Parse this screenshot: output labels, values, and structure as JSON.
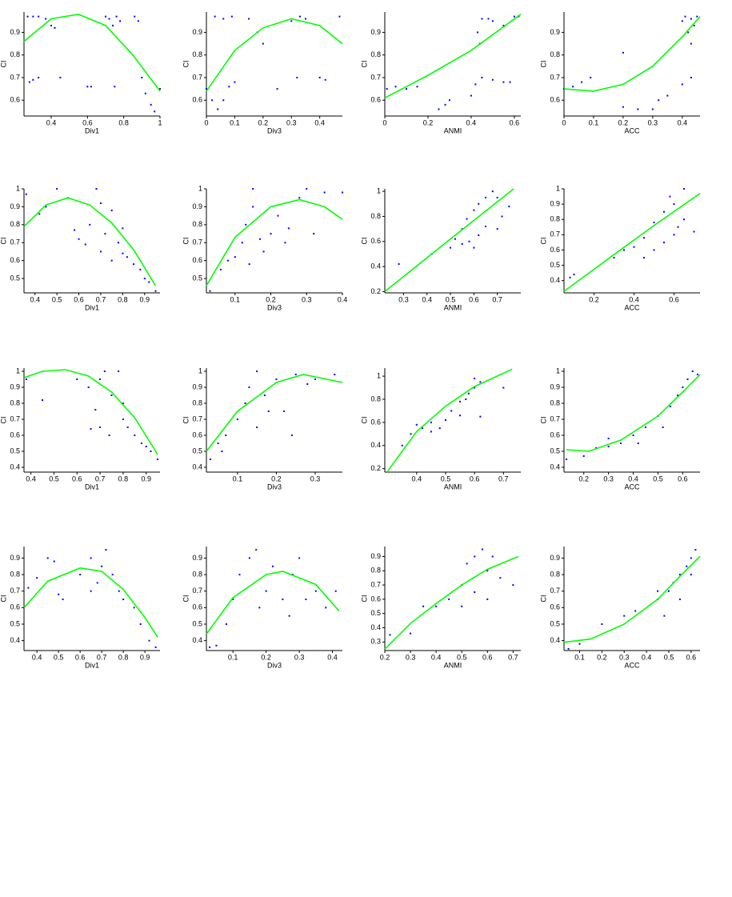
{
  "chart_data": [
    {
      "type": "scatter",
      "xlabel": "Div1",
      "ylabel": "CI",
      "xlim": [
        0.25,
        1.0
      ],
      "ylim": [
        0.53,
        0.99
      ],
      "xticks": [
        0.4,
        0.6,
        0.8,
        1
      ],
      "yticks": [
        0.6,
        0.7,
        0.8,
        0.9
      ],
      "color": "#0000ff",
      "fit_color": "#00ff00",
      "x": [
        0.27,
        0.3,
        0.33,
        0.37,
        0.4,
        0.42,
        0.28,
        0.3,
        0.33,
        0.45,
        0.6,
        0.62,
        0.7,
        0.72,
        0.74,
        0.78,
        0.86,
        0.88,
        0.9,
        0.92,
        0.95,
        0.97,
        1.0,
        0.75,
        0.76
      ],
      "y": [
        0.97,
        0.97,
        0.97,
        0.96,
        0.93,
        0.92,
        0.68,
        0.69,
        0.7,
        0.7,
        0.66,
        0.66,
        0.97,
        0.96,
        0.93,
        0.95,
        0.97,
        0.95,
        0.7,
        0.63,
        0.58,
        0.55,
        0.65,
        0.66,
        0.97
      ],
      "fit_x": [
        0.25,
        0.4,
        0.55,
        0.7,
        0.85,
        1.0
      ],
      "fit_y": [
        0.86,
        0.96,
        0.98,
        0.93,
        0.8,
        0.64
      ]
    },
    {
      "type": "scatter",
      "xlabel": "Div3",
      "ylabel": "CI",
      "xlim": [
        0,
        0.48
      ],
      "ylim": [
        0.53,
        0.99
      ],
      "xticks": [
        0,
        0.1,
        0.2,
        0.3,
        0.4
      ],
      "yticks": [
        0.6,
        0.7,
        0.8,
        0.9
      ],
      "color": "#0000ff",
      "fit_color": "#00ff00",
      "x": [
        0.0,
        0.02,
        0.04,
        0.06,
        0.08,
        0.1,
        0.03,
        0.06,
        0.09,
        0.15,
        0.18,
        0.2,
        0.25,
        0.3,
        0.33,
        0.35,
        0.4,
        0.42,
        0.47,
        0.32
      ],
      "y": [
        0.65,
        0.6,
        0.56,
        0.6,
        0.66,
        0.68,
        0.97,
        0.96,
        0.97,
        0.96,
        0.9,
        0.85,
        0.65,
        0.95,
        0.97,
        0.96,
        0.7,
        0.69,
        0.97,
        0.7
      ],
      "fit_x": [
        0,
        0.1,
        0.2,
        0.3,
        0.4,
        0.48
      ],
      "fit_y": [
        0.64,
        0.82,
        0.92,
        0.96,
        0.93,
        0.85
      ]
    },
    {
      "type": "scatter",
      "xlabel": "ANMI",
      "ylabel": "CI",
      "xlim": [
        0,
        0.63
      ],
      "ylim": [
        0.53,
        0.99
      ],
      "xticks": [
        0,
        0.2,
        0.4,
        0.6
      ],
      "yticks": [
        0.6,
        0.7,
        0.8,
        0.9
      ],
      "color": "#0000ff",
      "fit_color": "#00ff00",
      "x": [
        0.01,
        0.05,
        0.1,
        0.15,
        0.25,
        0.28,
        0.3,
        0.4,
        0.42,
        0.45,
        0.5,
        0.55,
        0.58,
        0.43,
        0.45,
        0.48,
        0.5,
        0.55,
        0.6,
        0.44,
        0.62
      ],
      "y": [
        0.65,
        0.66,
        0.65,
        0.66,
        0.56,
        0.58,
        0.6,
        0.62,
        0.67,
        0.7,
        0.69,
        0.68,
        0.68,
        0.9,
        0.96,
        0.96,
        0.95,
        0.93,
        0.97,
        0.85,
        0.97
      ],
      "fit_x": [
        0,
        0.2,
        0.4,
        0.63
      ],
      "fit_y": [
        0.61,
        0.71,
        0.82,
        0.98
      ]
    },
    {
      "type": "scatter",
      "xlabel": "ACC",
      "ylabel": "CI",
      "xlim": [
        0,
        0.46
      ],
      "ylim": [
        0.53,
        0.99
      ],
      "xticks": [
        0,
        0.1,
        0.2,
        0.3,
        0.4
      ],
      "yticks": [
        0.6,
        0.7,
        0.8,
        0.9
      ],
      "color": "#0000ff",
      "fit_color": "#00ff00",
      "x": [
        0,
        0.03,
        0.06,
        0.09,
        0.2,
        0.2,
        0.25,
        0.3,
        0.32,
        0.35,
        0.4,
        0.43,
        0.4,
        0.41,
        0.43,
        0.45,
        0.42,
        0.43,
        0.44
      ],
      "y": [
        0.65,
        0.66,
        0.68,
        0.7,
        0.81,
        0.57,
        0.56,
        0.56,
        0.6,
        0.62,
        0.67,
        0.7,
        0.95,
        0.97,
        0.96,
        0.97,
        0.9,
        0.85,
        0.93
      ],
      "fit_x": [
        0,
        0.1,
        0.2,
        0.3,
        0.4,
        0.46
      ],
      "fit_y": [
        0.65,
        0.64,
        0.67,
        0.75,
        0.88,
        0.97
      ]
    },
    {
      "type": "scatter",
      "xlabel": "Div1",
      "ylabel": "CI",
      "xlim": [
        0.35,
        0.97
      ],
      "ylim": [
        0.42,
        1.0
      ],
      "xticks": [
        0.4,
        0.5,
        0.6,
        0.7,
        0.8,
        0.9
      ],
      "yticks": [
        0.5,
        0.6,
        0.7,
        0.8,
        0.9,
        1
      ],
      "color": "#0000ff",
      "fit_color": "#00ff00",
      "x": [
        0.36,
        0.42,
        0.45,
        0.5,
        0.55,
        0.58,
        0.6,
        0.65,
        0.68,
        0.7,
        0.72,
        0.75,
        0.78,
        0.8,
        0.82,
        0.85,
        0.88,
        0.9,
        0.92,
        0.95,
        0.7,
        0.75,
        0.8,
        0.63
      ],
      "y": [
        0.97,
        0.86,
        0.9,
        1.0,
        0.95,
        0.77,
        0.72,
        0.8,
        1.0,
        0.92,
        0.75,
        0.88,
        0.7,
        0.64,
        0.62,
        0.58,
        0.55,
        0.5,
        0.48,
        0.43,
        0.65,
        0.6,
        0.78,
        0.69
      ],
      "fit_x": [
        0.35,
        0.45,
        0.55,
        0.65,
        0.75,
        0.85,
        0.95
      ],
      "fit_y": [
        0.79,
        0.91,
        0.95,
        0.91,
        0.81,
        0.66,
        0.46
      ]
    },
    {
      "type": "scatter",
      "xlabel": "Div3",
      "ylabel": "CI",
      "xlim": [
        0.02,
        0.4
      ],
      "ylim": [
        0.42,
        1.0
      ],
      "xticks": [
        0.1,
        0.2,
        0.3,
        0.4
      ],
      "yticks": [
        0.5,
        0.6,
        0.7,
        0.8,
        0.9,
        1
      ],
      "color": "#0000ff",
      "fit_color": "#00ff00",
      "x": [
        0.03,
        0.06,
        0.08,
        0.1,
        0.12,
        0.13,
        0.15,
        0.15,
        0.18,
        0.2,
        0.22,
        0.25,
        0.28,
        0.3,
        0.32,
        0.35,
        0.4,
        0.14,
        0.17,
        0.24
      ],
      "y": [
        0.43,
        0.55,
        0.6,
        0.62,
        0.7,
        0.8,
        0.9,
        1.0,
        0.65,
        0.75,
        0.85,
        0.78,
        0.95,
        1.0,
        0.75,
        0.98,
        0.98,
        0.58,
        0.72,
        0.7
      ],
      "fit_x": [
        0.02,
        0.1,
        0.2,
        0.28,
        0.35,
        0.4
      ],
      "fit_y": [
        0.46,
        0.73,
        0.9,
        0.94,
        0.9,
        0.83
      ]
    },
    {
      "type": "scatter",
      "xlabel": "ANMI",
      "ylabel": "CI",
      "xlim": [
        0.22,
        0.8
      ],
      "ylim": [
        0.19,
        1.02
      ],
      "xticks": [
        0.3,
        0.4,
        0.5,
        0.6,
        0.7
      ],
      "yticks": [
        0.2,
        0.4,
        0.6,
        0.8,
        1
      ],
      "color": "#0000ff",
      "fit_color": "#00ff00",
      "x": [
        0.28,
        0.42,
        0.5,
        0.52,
        0.55,
        0.57,
        0.6,
        0.62,
        0.65,
        0.68,
        0.62,
        0.65,
        0.7,
        0.72,
        0.58,
        0.6,
        0.55,
        0.7,
        0.75
      ],
      "y": [
        0.42,
        0.5,
        0.55,
        0.62,
        0.7,
        0.78,
        0.85,
        0.9,
        0.95,
        1.0,
        0.65,
        0.72,
        0.7,
        0.8,
        0.6,
        0.55,
        0.58,
        0.95,
        0.88
      ],
      "fit_x": [
        0.22,
        0.5,
        0.77
      ],
      "fit_y": [
        0.2,
        0.62,
        1.02
      ]
    },
    {
      "type": "scatter",
      "xlabel": "ACC",
      "ylabel": "CI",
      "xlim": [
        0.05,
        0.73
      ],
      "ylim": [
        0.32,
        1.0
      ],
      "xticks": [
        0.2,
        0.4,
        0.6
      ],
      "yticks": [
        0.4,
        0.5,
        0.6,
        0.7,
        0.8,
        0.9,
        1
      ],
      "color": "#0000ff",
      "fit_color": "#00ff00",
      "x": [
        0.08,
        0.1,
        0.3,
        0.35,
        0.4,
        0.45,
        0.5,
        0.55,
        0.6,
        0.65,
        0.5,
        0.55,
        0.6,
        0.62,
        0.7,
        0.45,
        0.58,
        0.65
      ],
      "y": [
        0.42,
        0.44,
        0.55,
        0.6,
        0.62,
        0.68,
        0.78,
        0.85,
        0.9,
        1.0,
        0.6,
        0.65,
        0.7,
        0.75,
        0.72,
        0.55,
        0.95,
        0.8
      ],
      "fit_x": [
        0.05,
        0.3,
        0.5,
        0.73
      ],
      "fit_y": [
        0.33,
        0.57,
        0.76,
        0.97
      ]
    },
    {
      "type": "scatter",
      "xlabel": "Div1",
      "ylabel": "CI",
      "xlim": [
        0.37,
        0.96
      ],
      "ylim": [
        0.37,
        1.02
      ],
      "xticks": [
        0.4,
        0.5,
        0.6,
        0.7,
        0.8,
        0.9
      ],
      "yticks": [
        0.4,
        0.5,
        0.6,
        0.7,
        0.8,
        0.9,
        1
      ],
      "color": "#0000ff",
      "fit_color": "#00ff00",
      "x": [
        0.38,
        0.45,
        0.6,
        0.65,
        0.7,
        0.72,
        0.68,
        0.7,
        0.75,
        0.78,
        0.8,
        0.82,
        0.85,
        0.88,
        0.9,
        0.92,
        0.95,
        0.74,
        0.8,
        0.66
      ],
      "y": [
        0.95,
        0.82,
        0.95,
        0.9,
        0.95,
        1.0,
        0.76,
        0.65,
        0.85,
        1.0,
        0.8,
        0.65,
        0.6,
        0.55,
        0.53,
        0.5,
        0.45,
        0.6,
        0.7,
        0.64
      ],
      "fit_x": [
        0.37,
        0.45,
        0.55,
        0.65,
        0.75,
        0.85,
        0.95
      ],
      "fit_y": [
        0.96,
        1.0,
        1.01,
        0.97,
        0.87,
        0.71,
        0.48
      ]
    },
    {
      "type": "scatter",
      "xlabel": "Div3",
      "ylabel": "CI",
      "xlim": [
        0.02,
        0.37
      ],
      "ylim": [
        0.37,
        1.02
      ],
      "xticks": [
        0.1,
        0.2,
        0.3
      ],
      "yticks": [
        0.4,
        0.5,
        0.6,
        0.7,
        0.8,
        0.9,
        1
      ],
      "color": "#0000ff",
      "fit_color": "#00ff00",
      "x": [
        0.03,
        0.05,
        0.07,
        0.1,
        0.12,
        0.13,
        0.15,
        0.15,
        0.18,
        0.2,
        0.22,
        0.25,
        0.28,
        0.3,
        0.35,
        0.06,
        0.17,
        0.24
      ],
      "y": [
        0.45,
        0.55,
        0.6,
        0.7,
        0.8,
        0.9,
        1.0,
        0.65,
        0.75,
        0.95,
        0.75,
        0.98,
        0.92,
        0.95,
        0.98,
        0.5,
        0.85,
        0.6
      ],
      "fit_x": [
        0.02,
        0.1,
        0.2,
        0.27,
        0.37
      ],
      "fit_y": [
        0.5,
        0.75,
        0.93,
        0.98,
        0.93
      ]
    },
    {
      "type": "scatter",
      "xlabel": "ANMI",
      "ylabel": "CI",
      "xlim": [
        0.29,
        0.76
      ],
      "ylim": [
        0.17,
        1.07
      ],
      "xticks": [
        0.4,
        0.5,
        0.6,
        0.7
      ],
      "yticks": [
        0.2,
        0.4,
        0.6,
        0.8,
        1
      ],
      "color": "#0000ff",
      "fit_color": "#00ff00",
      "x": [
        0.35,
        0.38,
        0.4,
        0.42,
        0.45,
        0.48,
        0.5,
        0.52,
        0.55,
        0.58,
        0.6,
        0.62,
        0.6,
        0.55,
        0.62,
        0.7,
        0.45,
        0.57
      ],
      "y": [
        0.4,
        0.5,
        0.58,
        0.55,
        0.6,
        0.55,
        0.62,
        0.7,
        0.78,
        0.85,
        0.9,
        0.95,
        0.98,
        0.66,
        0.65,
        0.9,
        0.52,
        0.8
      ],
      "fit_x": [
        0.3,
        0.4,
        0.5,
        0.6,
        0.73
      ],
      "fit_y": [
        0.18,
        0.52,
        0.74,
        0.91,
        1.06
      ]
    },
    {
      "type": "scatter",
      "xlabel": "ACC",
      "ylabel": "CI",
      "xlim": [
        0.12,
        0.67
      ],
      "ylim": [
        0.37,
        1.02
      ],
      "xticks": [
        0.2,
        0.3,
        0.4,
        0.5,
        0.6
      ],
      "yticks": [
        0.4,
        0.5,
        0.6,
        0.7,
        0.8,
        0.9,
        1
      ],
      "color": "#0000ff",
      "fit_color": "#00ff00",
      "x": [
        0.13,
        0.2,
        0.25,
        0.3,
        0.35,
        0.4,
        0.45,
        0.5,
        0.52,
        0.55,
        0.58,
        0.6,
        0.62,
        0.64,
        0.66,
        0.3,
        0.42
      ],
      "y": [
        0.45,
        0.47,
        0.52,
        0.53,
        0.55,
        0.6,
        0.65,
        0.72,
        0.65,
        0.78,
        0.85,
        0.9,
        0.95,
        1.0,
        0.98,
        0.58,
        0.55
      ],
      "fit_x": [
        0.13,
        0.22,
        0.35,
        0.5,
        0.6,
        0.67
      ],
      "fit_y": [
        0.51,
        0.5,
        0.57,
        0.72,
        0.87,
        0.98
      ]
    },
    {
      "type": "scatter",
      "xlabel": "Div1",
      "ylabel": "CI",
      "xlim": [
        0.34,
        0.97
      ],
      "ylim": [
        0.34,
        0.97
      ],
      "xticks": [
        0.4,
        0.5,
        0.6,
        0.7,
        0.8,
        0.9
      ],
      "yticks": [
        0.4,
        0.5,
        0.6,
        0.7,
        0.8,
        0.9
      ],
      "color": "#0000ff",
      "fit_color": "#00ff00",
      "x": [
        0.36,
        0.4,
        0.45,
        0.48,
        0.5,
        0.52,
        0.6,
        0.65,
        0.7,
        0.72,
        0.75,
        0.78,
        0.8,
        0.85,
        0.88,
        0.92,
        0.95,
        0.68,
        0.65
      ],
      "y": [
        0.72,
        0.78,
        0.9,
        0.88,
        0.68,
        0.65,
        0.8,
        0.9,
        0.85,
        0.95,
        0.8,
        0.7,
        0.65,
        0.6,
        0.5,
        0.4,
        0.36,
        0.75,
        0.7
      ],
      "fit_x": [
        0.34,
        0.45,
        0.6,
        0.7,
        0.8,
        0.9,
        0.96
      ],
      "fit_y": [
        0.6,
        0.76,
        0.84,
        0.82,
        0.71,
        0.54,
        0.42
      ]
    },
    {
      "type": "scatter",
      "xlabel": "Div3",
      "ylabel": "CI",
      "xlim": [
        0.02,
        0.43
      ],
      "ylim": [
        0.34,
        0.97
      ],
      "xticks": [
        0.1,
        0.2,
        0.3,
        0.4
      ],
      "yticks": [
        0.4,
        0.5,
        0.6,
        0.7,
        0.8,
        0.9
      ],
      "color": "#0000ff",
      "fit_color": "#00ff00",
      "x": [
        0.03,
        0.05,
        0.08,
        0.1,
        0.12,
        0.15,
        0.17,
        0.18,
        0.2,
        0.22,
        0.25,
        0.28,
        0.3,
        0.32,
        0.35,
        0.38,
        0.41,
        0.27
      ],
      "y": [
        0.36,
        0.37,
        0.5,
        0.65,
        0.8,
        0.9,
        0.95,
        0.6,
        0.7,
        0.85,
        0.65,
        0.8,
        0.9,
        0.65,
        0.7,
        0.6,
        0.7,
        0.55
      ],
      "fit_x": [
        0.02,
        0.1,
        0.2,
        0.25,
        0.35,
        0.42
      ],
      "fit_y": [
        0.44,
        0.66,
        0.8,
        0.82,
        0.74,
        0.58
      ]
    },
    {
      "type": "scatter",
      "xlabel": "ANMI",
      "ylabel": "CI",
      "xlim": [
        0.2,
        0.73
      ],
      "ylim": [
        0.24,
        0.97
      ],
      "xticks": [
        0.2,
        0.3,
        0.4,
        0.5,
        0.6,
        0.7
      ],
      "yticks": [
        0.3,
        0.4,
        0.5,
        0.6,
        0.7,
        0.8,
        0.9
      ],
      "color": "#0000ff",
      "fit_color": "#00ff00",
      "x": [
        0.22,
        0.3,
        0.35,
        0.4,
        0.45,
        0.5,
        0.52,
        0.55,
        0.58,
        0.6,
        0.62,
        0.55,
        0.6,
        0.65,
        0.7,
        0.5
      ],
      "y": [
        0.35,
        0.36,
        0.55,
        0.55,
        0.6,
        0.7,
        0.85,
        0.9,
        0.95,
        0.8,
        0.9,
        0.65,
        0.6,
        0.75,
        0.7,
        0.55
      ],
      "fit_x": [
        0.2,
        0.3,
        0.4,
        0.5,
        0.6,
        0.72
      ],
      "fit_y": [
        0.25,
        0.43,
        0.57,
        0.7,
        0.81,
        0.9
      ]
    },
    {
      "type": "scatter",
      "xlabel": "ACC",
      "ylabel": "CI",
      "xlim": [
        0.03,
        0.64
      ],
      "ylim": [
        0.34,
        0.97
      ],
      "xticks": [
        0.1,
        0.2,
        0.3,
        0.4,
        0.5,
        0.6
      ],
      "yticks": [
        0.4,
        0.5,
        0.6,
        0.7,
        0.8,
        0.9
      ],
      "color": "#0000ff",
      "fit_color": "#00ff00",
      "x": [
        0.05,
        0.1,
        0.2,
        0.3,
        0.35,
        0.45,
        0.48,
        0.5,
        0.52,
        0.55,
        0.58,
        0.6,
        0.62,
        0.55,
        0.45,
        0.6
      ],
      "y": [
        0.35,
        0.38,
        0.5,
        0.55,
        0.58,
        0.65,
        0.55,
        0.7,
        0.75,
        0.8,
        0.85,
        0.9,
        0.95,
        0.65,
        0.7,
        0.8
      ],
      "fit_x": [
        0.03,
        0.15,
        0.3,
        0.45,
        0.55,
        0.64
      ],
      "fit_y": [
        0.39,
        0.41,
        0.5,
        0.65,
        0.79,
        0.91
      ]
    }
  ]
}
